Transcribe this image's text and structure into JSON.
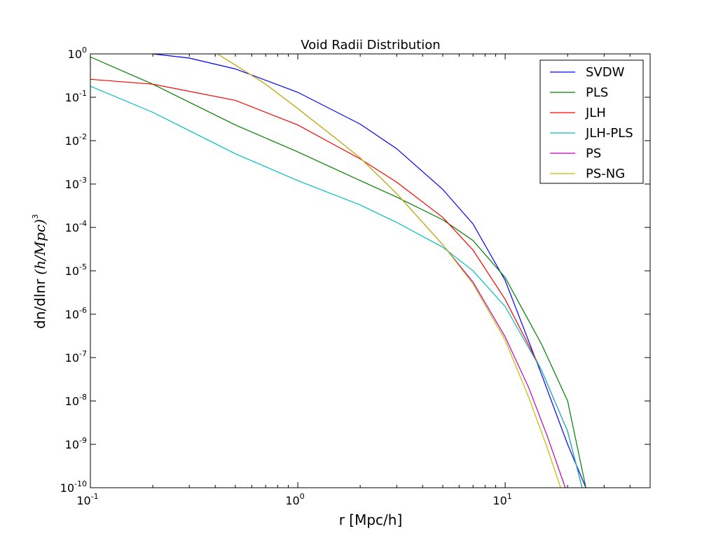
{
  "chart_data": {
    "type": "line",
    "title": "Void Radii Distribution",
    "xlabel": "r [Mpc/h]",
    "ylabel": "dn/dlnr",
    "ylabel_math": "(h/Mpc)",
    "ylabel_math_exp": "3",
    "xscale": "log",
    "yscale": "log",
    "xlim": [
      0.1,
      50
    ],
    "ylim": [
      1e-10,
      1
    ],
    "xticks": [
      {
        "base": "10",
        "exp": "-1",
        "value": 0.1
      },
      {
        "base": "10",
        "exp": "0",
        "value": 1
      },
      {
        "base": "10",
        "exp": "1",
        "value": 10
      }
    ],
    "yticks": [
      {
        "base": "10",
        "exp": "0",
        "value": 1
      },
      {
        "base": "10",
        "exp": "-1",
        "value": 0.1
      },
      {
        "base": "10",
        "exp": "-2",
        "value": 0.01
      },
      {
        "base": "10",
        "exp": "-3",
        "value": 0.001
      },
      {
        "base": "10",
        "exp": "-4",
        "value": 0.0001
      },
      {
        "base": "10",
        "exp": "-5",
        "value": 1e-05
      },
      {
        "base": "10",
        "exp": "-6",
        "value": 1e-06
      },
      {
        "base": "10",
        "exp": "-7",
        "value": 1e-07
      },
      {
        "base": "10",
        "exp": "-8",
        "value": 1e-08
      },
      {
        "base": "10",
        "exp": "-9",
        "value": 1e-09
      },
      {
        "base": "10",
        "exp": "-10",
        "value": 1e-10
      }
    ],
    "grid": false,
    "legend_position": "top-right",
    "series": [
      {
        "name": "SVDW",
        "color": "#0000ff",
        "x": [
          0.2,
          0.3,
          0.5,
          1,
          2,
          3,
          5,
          7,
          10,
          15,
          20,
          24.5
        ],
        "y": [
          1.0,
          0.8,
          0.45,
          0.13,
          0.024,
          0.0065,
          0.00075,
          0.00012,
          6e-06,
          4e-08,
          1e-09,
          1e-10
        ]
      },
      {
        "name": "PLS",
        "color": "#008000",
        "x": [
          0.1,
          0.2,
          0.5,
          1,
          2,
          3,
          5,
          7,
          10,
          15,
          20,
          24.5
        ],
        "y": [
          0.85,
          0.2,
          0.023,
          0.0055,
          0.0012,
          0.0005,
          0.00015,
          5e-05,
          7e-06,
          2e-07,
          1e-08,
          1e-10
        ]
      },
      {
        "name": "JLH",
        "color": "#ff0000",
        "x": [
          0.1,
          0.2,
          0.5,
          1,
          1.5,
          2,
          3,
          5,
          7,
          10,
          15,
          20,
          23.5
        ],
        "y": [
          0.26,
          0.2,
          0.085,
          0.023,
          0.008,
          0.0038,
          0.0011,
          0.00017,
          3e-05,
          2.2e-06,
          5e-08,
          2e-09,
          1e-10
        ]
      },
      {
        "name": "JLH-PLS",
        "color": "#00bfbf",
        "x": [
          0.1,
          0.2,
          0.5,
          1,
          2,
          3,
          5,
          7,
          10,
          15,
          20,
          23.5
        ],
        "y": [
          0.18,
          0.045,
          0.005,
          0.0012,
          0.00033,
          0.00013,
          3.5e-05,
          1e-05,
          1.5e-06,
          5e-08,
          2e-09,
          1e-10
        ]
      },
      {
        "name": "PS",
        "color": "#bf00bf",
        "x": [
          0.41,
          0.7,
          1,
          1.5,
          2,
          3,
          5,
          7,
          10,
          13,
          16,
          19.5
        ],
        "y": [
          1.0,
          0.2,
          0.055,
          0.012,
          0.004,
          0.0006,
          4e-05,
          5.5e-06,
          3e-07,
          2e-08,
          1.5e-09,
          1e-10
        ]
      },
      {
        "name": "PS-NG",
        "color": "#bfbf00",
        "x": [
          0.41,
          0.7,
          1,
          1.5,
          2,
          3,
          5,
          7,
          10,
          13,
          16,
          18.5
        ],
        "y": [
          1.0,
          0.2,
          0.055,
          0.012,
          0.004,
          0.0006,
          4e-05,
          5e-06,
          2.5e-07,
          1.2e-08,
          8e-10,
          1e-10
        ]
      }
    ]
  }
}
